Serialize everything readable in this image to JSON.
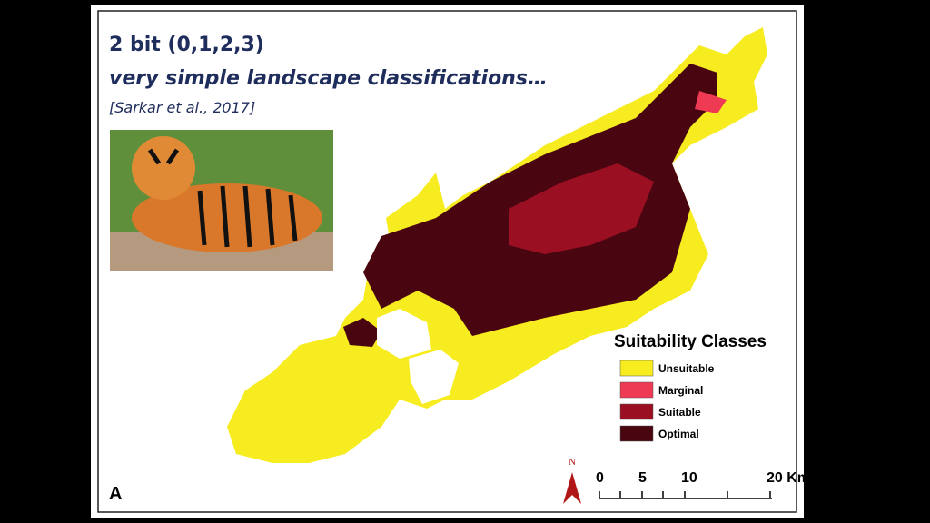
{
  "slide": {
    "title": "2 bit (0,1,2,3)",
    "subtitle": "very simple landscape classifications…",
    "citation": "[Sarkar et al., 2017]"
  },
  "map": {
    "legend": {
      "title": "Suitability Classes",
      "classes": [
        {
          "label": "Unsuitable",
          "color": "#f7ec1f"
        },
        {
          "label": "Marginal",
          "color": "#ee3a52"
        },
        {
          "label": "Suitable",
          "color": "#9a0f22"
        },
        {
          "label": "Optimal",
          "color": "#4a0610"
        }
      ]
    },
    "scale_bar": {
      "labels": [
        "0",
        "5",
        "10",
        "20 Km"
      ]
    },
    "north_label": "N",
    "panel_label": "A"
  }
}
